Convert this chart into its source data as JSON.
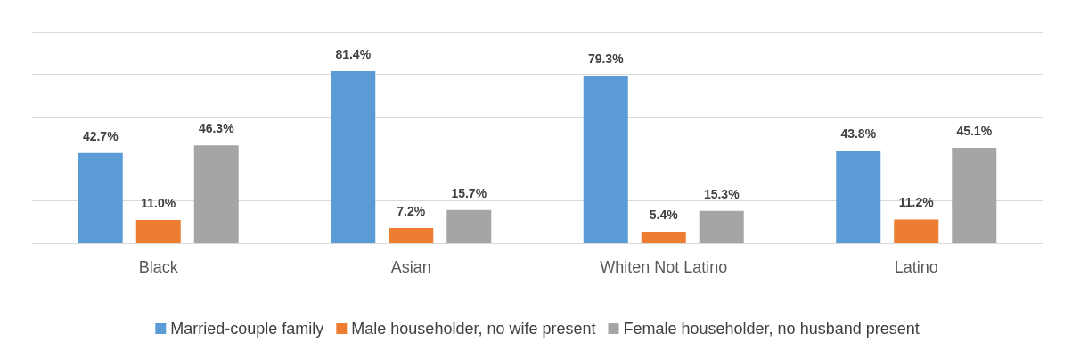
{
  "chart_data": {
    "type": "bar",
    "categories": [
      "Black",
      "Asian",
      "Whiten Not Latino",
      "Latino"
    ],
    "series": [
      {
        "name": "Married-couple family",
        "color": "#5b9bd5",
        "values": [
          42.7,
          81.4,
          79.3,
          43.8
        ],
        "value_labels": [
          "42.7%",
          "81.4%",
          "79.3%",
          "43.8%"
        ]
      },
      {
        "name": "Male householder, no wife present",
        "color": "#ed7d31",
        "values": [
          11.0,
          7.2,
          5.4,
          11.2
        ],
        "value_labels": [
          "11.0%",
          "7.2%",
          "5.4%",
          "11.2%"
        ]
      },
      {
        "name": "Female householder, no husband present",
        "color": "#a5a5a5",
        "values": [
          46.3,
          15.7,
          15.3,
          45.1
        ],
        "value_labels": [
          "46.3%",
          "15.7%",
          "15.3%",
          "45.1%"
        ]
      }
    ],
    "ylim": [
      0,
      100
    ],
    "yticks": [
      {
        "value": 0,
        "label": null
      },
      {
        "value": 20,
        "label": null
      },
      {
        "value": 40,
        "label": null
      },
      {
        "value": 60,
        "label": null
      },
      {
        "value": 80,
        "label": null
      },
      {
        "value": 100,
        "label": null
      }
    ],
    "grid": "y",
    "legend": "bottom",
    "tick_labels": "x"
  }
}
